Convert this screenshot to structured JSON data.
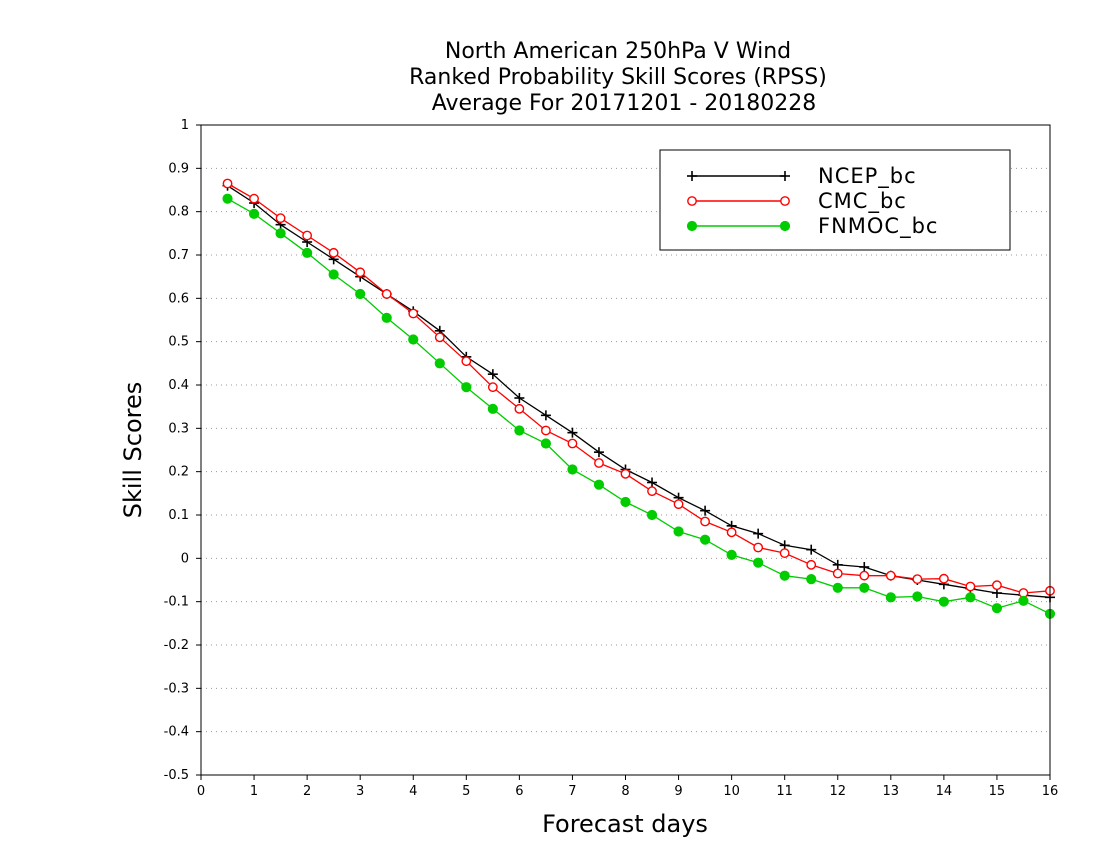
{
  "chart_data": {
    "type": "line",
    "title": [
      "North American 250hPa V Wind",
      "Ranked Probability Skill Scores (RPSS)",
      "Average For 20171201 - 20180228"
    ],
    "xlabel": "Forecast days",
    "ylabel": "Skill Scores",
    "xlim": [
      0,
      16
    ],
    "ylim": [
      -0.5,
      1
    ],
    "x_ticks": [
      0,
      1,
      2,
      3,
      4,
      5,
      6,
      7,
      8,
      9,
      10,
      11,
      12,
      13,
      14,
      15,
      16
    ],
    "x_tick_labels": [
      "0",
      "1",
      "2",
      "3",
      "4",
      "5",
      "6",
      "7",
      "8",
      "9",
      "10",
      "11",
      "12",
      "13",
      "14",
      "15",
      "16"
    ],
    "y_ticks": [
      -0.5,
      -0.4,
      -0.3,
      -0.2,
      -0.1,
      0,
      0.1,
      0.2,
      0.3,
      0.4,
      0.5,
      0.6,
      0.7,
      0.8,
      0.9,
      1
    ],
    "y_tick_labels": [
      "-0.5",
      "-0.4",
      "-0.3",
      "-0.2",
      "-0.1",
      "0",
      "0.1",
      "0.2",
      "0.3",
      "0.4",
      "0.5",
      "0.6",
      "0.7",
      "0.8",
      "0.9",
      "1"
    ],
    "grid": "horizontal dotted",
    "legend_position": "top-right",
    "x": [
      0.5,
      1,
      1.5,
      2,
      2.5,
      3,
      3.5,
      4,
      4.5,
      5,
      5.5,
      6,
      6.5,
      7,
      7.5,
      8,
      8.5,
      9,
      9.5,
      10,
      10.5,
      11,
      11.5,
      12,
      12.5,
      13,
      13.5,
      14,
      14.5,
      15,
      15.5,
      16
    ],
    "series": [
      {
        "name": "NCEP_bc",
        "color": "#000000",
        "marker": "plus",
        "values": [
          0.86,
          0.82,
          0.77,
          0.73,
          0.69,
          0.65,
          0.61,
          0.57,
          0.525,
          0.465,
          0.425,
          0.37,
          0.33,
          0.29,
          0.245,
          0.205,
          0.175,
          0.14,
          0.11,
          0.075,
          0.057,
          0.03,
          0.02,
          -0.015,
          -0.02,
          -0.04,
          -0.05,
          -0.06,
          -0.07,
          -0.08,
          -0.085,
          -0.09
        ]
      },
      {
        "name": "CMC_bc",
        "color": "#ff0000",
        "marker": "open-circle",
        "values": [
          0.865,
          0.83,
          0.785,
          0.745,
          0.705,
          0.66,
          0.61,
          0.565,
          0.51,
          0.455,
          0.395,
          0.345,
          0.295,
          0.265,
          0.22,
          0.195,
          0.155,
          0.125,
          0.085,
          0.06,
          0.025,
          0.012,
          -0.015,
          -0.035,
          -0.04,
          -0.04,
          -0.048,
          -0.047,
          -0.065,
          -0.062,
          -0.08,
          -0.075
        ]
      },
      {
        "name": "FNMOC_bc",
        "color": "#00cc00",
        "marker": "filled-circle",
        "values": [
          0.83,
          0.795,
          0.75,
          0.705,
          0.655,
          0.61,
          0.555,
          0.505,
          0.45,
          0.395,
          0.345,
          0.295,
          0.265,
          0.205,
          0.17,
          0.13,
          0.1,
          0.062,
          0.043,
          0.008,
          -0.01,
          -0.04,
          -0.048,
          -0.068,
          -0.068,
          -0.09,
          -0.088,
          -0.1,
          -0.09,
          -0.115,
          -0.098,
          -0.128
        ]
      }
    ]
  }
}
